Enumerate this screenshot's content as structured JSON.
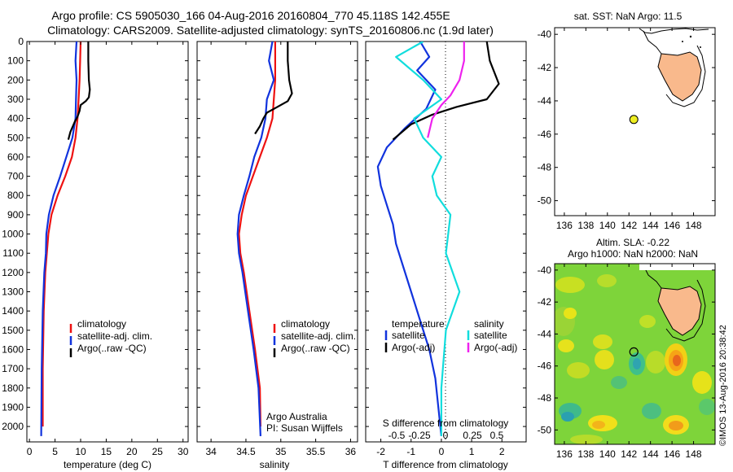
{
  "header": {
    "line1": "Argo profile: CS 5905030_166 04-Aug-2016 20160804_770 45.118S 142.455E",
    "line2": "Climatology: CARS2009. Satellite-adjusted climatology: synTS_20160806.nc (1.9d later)"
  },
  "colors": {
    "climatology": "#ee1111",
    "satellite": "#1133dd",
    "argo": "#000000",
    "satellite_salinity": "#11dddd",
    "argo_salinity_adj": "#ee22ee",
    "land": "#f9b98c",
    "float_marker": "#eeee22"
  },
  "chart_data": [
    {
      "type": "line",
      "name": "temperature-profile",
      "xlabel": "temperature (deg C)",
      "ylabel": "",
      "xlim": [
        -0.5,
        31
      ],
      "ylim": [
        2080,
        0
      ],
      "xticks": [
        0,
        5,
        10,
        15,
        20,
        25,
        30
      ],
      "yticks": [
        0,
        100,
        200,
        300,
        400,
        500,
        600,
        700,
        800,
        900,
        1000,
        1100,
        1200,
        1300,
        1400,
        1500,
        1600,
        1700,
        1800,
        1900,
        2000
      ],
      "legend": [
        "climatology",
        "satellite-adj. clim.",
        "Argo(..raw -QC)"
      ],
      "series": [
        {
          "name": "climatology",
          "color": "#ee1111",
          "x": [
            10,
            9.9,
            9.8,
            9.6,
            9.4,
            9,
            8.3,
            7,
            5.5,
            4.3,
            3.7,
            3.4,
            3.1,
            2.8,
            2.6,
            2.6
          ],
          "y": [
            0,
            100,
            200,
            300,
            400,
            500,
            600,
            700,
            800,
            900,
            1000,
            1100,
            1200,
            1400,
            1700,
            2000
          ]
        },
        {
          "name": "satellite-adj. clim.",
          "color": "#1133dd",
          "x": [
            9.2,
            9,
            9.2,
            9.1,
            9,
            8.4,
            7.2,
            6,
            4.7,
            3.8,
            3.3,
            3.2,
            2.9,
            2.6,
            2.4,
            2.3
          ],
          "y": [
            0,
            100,
            200,
            300,
            400,
            500,
            600,
            700,
            800,
            900,
            1000,
            1100,
            1200,
            1400,
            1700,
            2050
          ]
        },
        {
          "name": "Argo(..raw -QC)",
          "color": "#000000",
          "x": [
            11.5,
            11.5,
            11.6,
            11.8,
            11.6,
            11,
            10,
            9.8,
            9.4,
            8.8,
            8,
            7.6
          ],
          "y": [
            0,
            100,
            200,
            250,
            290,
            310,
            330,
            360,
            390,
            420,
            470,
            510
          ]
        }
      ]
    },
    {
      "type": "line",
      "name": "salinity-profile",
      "xlabel": "salinity",
      "ylabel": "",
      "xlim": [
        33.8,
        36.1
      ],
      "ylim": [
        2080,
        0
      ],
      "xticks": [
        34,
        34.5,
        35,
        35.5,
        36
      ],
      "legend": [
        "climatology",
        "satellite-adj. clim.",
        "Argo(..raw -QC)"
      ],
      "annotations": [
        "Argo Australia",
        "PI: Susan Wijffels"
      ],
      "series": [
        {
          "name": "climatology",
          "color": "#ee1111",
          "x": [
            34.92,
            34.92,
            34.92,
            34.9,
            34.88,
            34.8,
            34.7,
            34.6,
            34.5,
            34.44,
            34.4,
            34.42,
            34.47,
            34.55,
            34.63,
            34.7,
            34.71
          ],
          "y": [
            0,
            100,
            200,
            300,
            400,
            500,
            600,
            700,
            800,
            900,
            1000,
            1100,
            1200,
            1400,
            1600,
            1800,
            2000
          ]
        },
        {
          "name": "satellite-adj. clim.",
          "color": "#1133dd",
          "x": [
            34.88,
            34.83,
            34.9,
            34.8,
            34.78,
            34.72,
            34.62,
            34.55,
            34.47,
            34.4,
            34.38,
            34.4,
            34.45,
            34.53,
            34.61,
            34.68,
            34.71
          ],
          "y": [
            0,
            100,
            200,
            300,
            400,
            500,
            600,
            700,
            800,
            900,
            1000,
            1100,
            1200,
            1400,
            1600,
            1800,
            2050
          ]
        },
        {
          "name": "Argo(..raw -QC)",
          "color": "#000000",
          "x": [
            35.1,
            35.1,
            35.12,
            35.16,
            35.1,
            34.95,
            34.8,
            34.75,
            34.7,
            34.63
          ],
          "y": [
            0,
            100,
            200,
            270,
            310,
            340,
            370,
            400,
            440,
            480
          ]
        }
      ]
    },
    {
      "type": "line",
      "name": "difference-profile",
      "xlabel": "T difference from climatology",
      "ylabel": "",
      "xlim": [
        -2.5,
        2.8
      ],
      "ylim": [
        2080,
        0
      ],
      "xticks": [
        -2,
        -1,
        0,
        1,
        2
      ],
      "top_axis_label": "S difference from climatology",
      "top_ticks": [
        "-0.5",
        "-0.25",
        "0",
        "0.25",
        "0.5"
      ],
      "legend_headers": [
        "temperature",
        "salinity"
      ],
      "legend": [
        "satellite",
        "Argo(-adj)",
        "satellite",
        "Argo(-adj)"
      ],
      "series": [
        {
          "name": "temperature satellite",
          "color": "#1133dd",
          "x": [
            -0.7,
            -0.4,
            -0.8,
            -0.2,
            -0.5,
            -1.2,
            -1.8,
            -2.1,
            -2,
            -1.8,
            -1.6,
            -1.5,
            -1.3,
            -1,
            -0.7,
            -0.4,
            -0.2,
            -0.1,
            0
          ],
          "y": [
            0,
            80,
            150,
            250,
            350,
            450,
            550,
            650,
            750,
            850,
            950,
            1050,
            1150,
            1300,
            1450,
            1600,
            1750,
            1900,
            2050
          ]
        },
        {
          "name": "temperature Argo(-adj)",
          "color": "#000000",
          "x": [
            1.5,
            1.6,
            1.9,
            1.5,
            0.5,
            -0.3,
            -1,
            -1.6
          ],
          "y": [
            0,
            100,
            220,
            300,
            340,
            380,
            430,
            510
          ]
        },
        {
          "name": "salinity satellite",
          "color": "#11dddd",
          "x": [
            -0.2,
            -0.5,
            -0.2,
            0,
            -0.3,
            -0.2,
            0,
            -0.1,
            -0.05,
            0.1,
            0.05,
            0.2,
            0.05,
            0,
            0
          ],
          "y": [
            0,
            80,
            200,
            300,
            400,
            500,
            600,
            700,
            800,
            900,
            1100,
            1300,
            1500,
            1800,
            2050
          ]
        },
        {
          "name": "salinity Argo(-adj)",
          "color": "#ee22ee",
          "x": [
            0.25,
            0.25,
            0.2,
            0.1,
            0,
            -0.1,
            -0.15
          ],
          "y": [
            0,
            100,
            200,
            280,
            330,
            400,
            500
          ]
        }
      ]
    },
    {
      "type": "scatter",
      "name": "map-sst",
      "title": "sat. SST: NaN Argo: 11.5",
      "xticks": [
        136,
        138,
        140,
        142,
        144,
        146,
        148
      ],
      "yticks": [
        -40,
        -42,
        -44,
        -46,
        -48,
        -50
      ],
      "xlim": [
        135.1,
        150
      ],
      "ylim": [
        -50.9,
        -39.6
      ],
      "points": [
        {
          "lon": 142.455,
          "lat": -45.118
        }
      ]
    },
    {
      "type": "heatmap",
      "name": "map-sla",
      "title_lines": [
        "Altim. SLA: -0.22",
        "Argo h1000: NaN h2000: NaN"
      ],
      "xticks": [
        136,
        138,
        140,
        142,
        144,
        146,
        148
      ],
      "yticks": [
        -40,
        -42,
        -44,
        -46,
        -48,
        -50
      ],
      "xlim": [
        135.1,
        150
      ],
      "ylim": [
        -50.9,
        -39.6
      ],
      "points": [
        {
          "lon": 142.455,
          "lat": -45.118
        }
      ]
    }
  ],
  "watermark": "©IMOS 13-Aug-2016 20:38:42"
}
